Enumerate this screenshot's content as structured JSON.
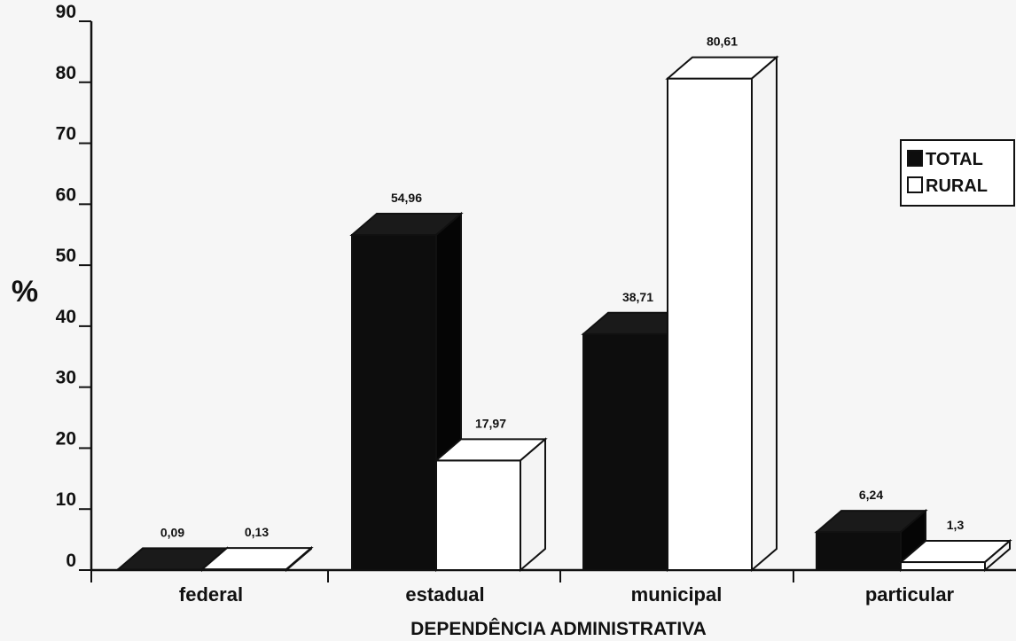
{
  "chart_data": {
    "type": "bar",
    "three_d": true,
    "title": "",
    "xlabel": "DEPENDÊNCIA ADMINISTRATIVA",
    "ylabel": "%",
    "ylim": [
      0,
      90
    ],
    "yticks": [
      "0",
      "10",
      "20",
      "30",
      "40",
      "50",
      "60",
      "70",
      "80",
      "90"
    ],
    "categories": [
      "federal",
      "estadual",
      "municipal",
      "particular"
    ],
    "series": [
      {
        "name": "TOTAL",
        "color": "#0d0d0d",
        "values": [
          0.09,
          54.96,
          38.71,
          6.24
        ],
        "labels": [
          "0,09",
          "54,96",
          "38,71",
          "6,24"
        ]
      },
      {
        "name": "RURAL",
        "color": "#ffffff",
        "values": [
          0.13,
          17.97,
          80.61,
          1.3
        ],
        "labels": [
          "0,13",
          "17,97",
          "80,61",
          "1,3"
        ]
      }
    ],
    "legend": "right",
    "grid": false
  }
}
